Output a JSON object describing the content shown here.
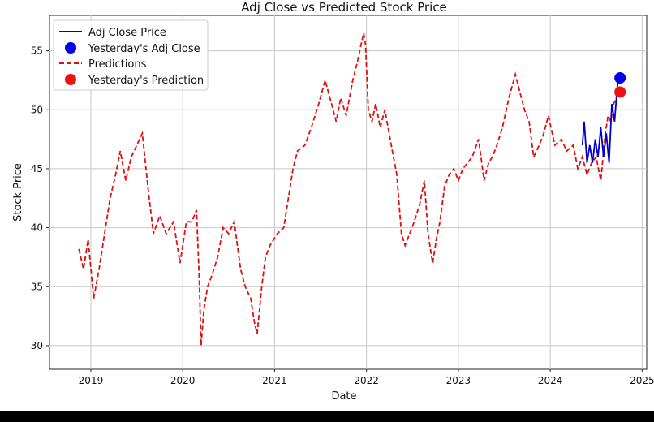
{
  "chart_data": {
    "type": "line",
    "title": "Adj Close vs Predicted Stock Price",
    "xlabel": "Date",
    "ylabel": "Stock Price",
    "xlim": [
      2018.55,
      2025.05
    ],
    "ylim": [
      28,
      58
    ],
    "x_ticks": [
      2019,
      2020,
      2021,
      2022,
      2023,
      2024,
      2025
    ],
    "x_tick_labels": [
      "2019",
      "2020",
      "2021",
      "2022",
      "2023",
      "2024",
      "2025"
    ],
    "y_ticks": [
      30,
      35,
      40,
      45,
      50,
      55
    ],
    "y_tick_labels": [
      "30",
      "35",
      "40",
      "45",
      "50",
      "55"
    ],
    "grid": true,
    "legend": "top-left",
    "legend_entries": [
      "Adj Close Price",
      "Yesterday's Adj Close",
      "Predictions",
      "Yesterday's Prediction"
    ],
    "colors": {
      "adj_close": "#0000cc",
      "predictions": "#dd1111",
      "yesterday_adj": "#0000ee",
      "yesterday_pred": "#ee1111"
    },
    "series": [
      {
        "name": "Predictions",
        "style": "dashed",
        "x": [
          2018.87,
          2018.92,
          2018.97,
          2019.03,
          2019.09,
          2019.15,
          2019.21,
          2019.27,
          2019.32,
          2019.38,
          2019.44,
          2019.5,
          2019.56,
          2019.62,
          2019.68,
          2019.75,
          2019.82,
          2019.9,
          2019.97,
          2020.04,
          2020.1,
          2020.15,
          2020.18,
          2020.2,
          2020.23,
          2020.27,
          2020.32,
          2020.38,
          2020.44,
          2020.5,
          2020.56,
          2020.63,
          2020.68,
          2020.74,
          2020.78,
          2020.81,
          2020.86,
          2020.9,
          2020.95,
          2021.03,
          2021.1,
          2021.15,
          2021.2,
          2021.25,
          2021.33,
          2021.4,
          2021.48,
          2021.55,
          2021.62,
          2021.67,
          2021.72,
          2021.78,
          2021.85,
          2021.9,
          2021.94,
          2021.97,
          2021.99,
          2022.02,
          2022.06,
          2022.1,
          2022.15,
          2022.2,
          2022.27,
          2022.33,
          2022.38,
          2022.42,
          2022.47,
          2022.52,
          2022.58,
          2022.63,
          2022.67,
          2022.72,
          2022.76,
          2022.8,
          2022.85,
          2022.9,
          2022.95,
          2023.0,
          2023.05,
          2023.1,
          2023.15,
          2023.22,
          2023.28,
          2023.33,
          2023.37,
          2023.42,
          2023.48,
          2023.55,
          2023.62,
          2023.67,
          2023.72,
          2023.77,
          2023.82,
          2023.88,
          2023.93,
          2023.98,
          2024.05,
          2024.12,
          2024.18,
          2024.25,
          2024.3,
          2024.35,
          2024.4,
          2024.45,
          2024.5,
          2024.55,
          2024.6,
          2024.63,
          2024.66,
          2024.69,
          2024.72,
          2024.75
        ],
        "y": [
          38.2,
          36.5,
          39.0,
          34.0,
          36.5,
          39.5,
          42.5,
          44.5,
          46.5,
          44.0,
          46.0,
          47.0,
          48.0,
          43.5,
          39.5,
          41.0,
          39.5,
          40.5,
          37.0,
          40.5,
          40.5,
          41.5,
          35.5,
          30.0,
          33.0,
          35.0,
          36.0,
          37.5,
          40.0,
          39.5,
          40.5,
          36.5,
          35.0,
          34.0,
          32.0,
          31.0,
          35.0,
          37.5,
          38.5,
          39.5,
          40.0,
          42.5,
          45.0,
          46.5,
          47.0,
          48.5,
          50.5,
          52.5,
          50.5,
          49.0,
          51.0,
          49.5,
          52.5,
          54.0,
          55.5,
          56.5,
          55.5,
          50.0,
          49.0,
          50.5,
          48.5,
          50.0,
          47.0,
          44.5,
          39.5,
          38.5,
          39.5,
          40.5,
          42.0,
          44.0,
          39.5,
          37.0,
          39.0,
          40.5,
          43.5,
          44.5,
          45.0,
          44.0,
          45.0,
          45.5,
          46.0,
          47.5,
          44.0,
          45.5,
          46.0,
          47.0,
          48.5,
          51.0,
          53.0,
          51.5,
          50.0,
          49.0,
          46.0,
          47.0,
          48.0,
          49.5,
          47.0,
          47.5,
          46.5,
          47.0,
          45.0,
          46.0,
          44.5,
          45.5,
          46.0,
          44.0,
          48.0,
          49.5,
          49.0,
          50.5,
          51.0,
          51.5
        ]
      },
      {
        "name": "Adj Close Price",
        "style": "solid",
        "x": [
          2024.35,
          2024.37,
          2024.4,
          2024.43,
          2024.46,
          2024.49,
          2024.52,
          2024.55,
          2024.58,
          2024.61,
          2024.64,
          2024.67,
          2024.7,
          2024.73,
          2024.75
        ],
        "y": [
          47.0,
          49.0,
          45.5,
          47.0,
          45.5,
          47.5,
          46.0,
          48.5,
          46.0,
          48.0,
          45.5,
          50.5,
          49.0,
          52.0,
          52.7
        ]
      }
    ],
    "points": [
      {
        "name": "Yesterday's Adj Close",
        "x": 2024.76,
        "y": 52.7
      },
      {
        "name": "Yesterday's Prediction",
        "x": 2024.76,
        "y": 51.5
      }
    ]
  }
}
